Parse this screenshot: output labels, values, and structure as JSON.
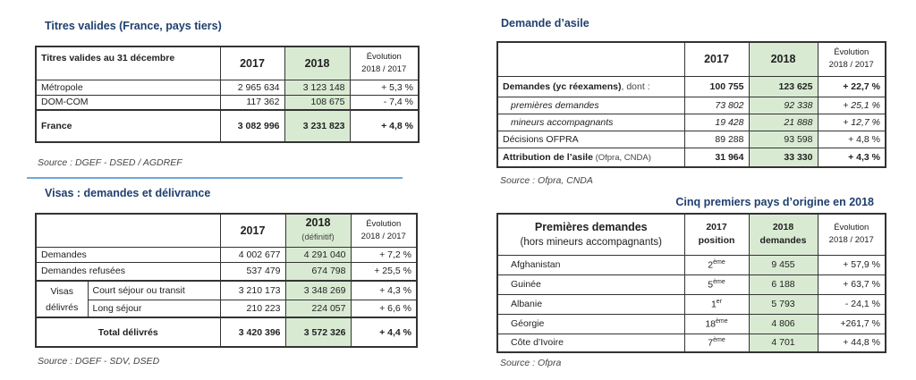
{
  "titres": {
    "title": "Titres valides (France, pays tiers)",
    "header": {
      "label": "Titres valides au 31 décembre",
      "y2017": "2017",
      "y2018": "2018",
      "evo1": "Évolution",
      "evo2": "2018 / 2017"
    },
    "rows": [
      {
        "label": "Métropole",
        "v2017": "2 965 634",
        "v2018": "3 123 148",
        "evo": "+ 5,3 %"
      },
      {
        "label": "DOM-COM",
        "v2017": "117 362",
        "v2018": "108 675",
        "evo": "- 7,4 %"
      },
      {
        "label": "France",
        "v2017": "3 082 996",
        "v2018": "3 231 823",
        "evo": "+ 4,8 %"
      }
    ],
    "source": "Source : DGEF - DSED / AGDREF"
  },
  "visas": {
    "title": "Visas : demandes et délivrance",
    "header": {
      "y2017": "2017",
      "y2018": "2018",
      "y2018_note": "(définitif)",
      "evo1": "Évolution",
      "evo2": "2018 / 2017"
    },
    "rows": [
      {
        "label": "Demandes",
        "v2017": "4 002 677",
        "v2018": "4 291 040",
        "evo": "+ 7,2 %"
      },
      {
        "label": "Demandes refusées",
        "v2017": "537 479",
        "v2018": "674 798",
        "evo": "+ 25,5 %"
      },
      {
        "label": "Court séjour ou transit",
        "v2017": "3 210 173",
        "v2018": "3  348 269",
        "evo": "+ 4,3 %"
      },
      {
        "label": "Long séjour",
        "v2017": "210 223",
        "v2018": "224 057",
        "evo": "+ 6,6 %"
      },
      {
        "label": "Total délivrés",
        "v2017": "3 420 396",
        "v2018": "3 572 326",
        "evo": "+ 4,4 %"
      }
    ],
    "group_label1": "Visas",
    "group_label2": "délivrés",
    "source": "Source : DGEF - SDV, DSED"
  },
  "asile": {
    "title": "Demande d’asile",
    "header": {
      "y2017": "2017",
      "y2018": "2018",
      "evo1": "Évolution",
      "evo2": "2018 / 2017"
    },
    "rows": [
      {
        "label": "Demandes (yc réexamens)",
        "suffix": ", dont :",
        "v2017": "100 755",
        "v2018": "123 625",
        "evo": "+ 22,7 %"
      },
      {
        "label": "premières demandes",
        "v2017": "73 802",
        "v2018": "92 338",
        "evo": "+ 25,1 %"
      },
      {
        "label": "mineurs accompagnants",
        "v2017": "19 428",
        "v2018": "21 888",
        "evo": "+ 12,7 %"
      },
      {
        "label": "Décisions OFPRA",
        "v2017": "89 288",
        "v2018": "93 598",
        "evo": "+ 4,8 %"
      },
      {
        "label": "Attribution de l’asile",
        "suffix": " (Ofpra, CNDA)",
        "v2017": "31 964",
        "v2018": "33 330",
        "evo": "+ 4,3 %"
      }
    ],
    "source": "Source : Ofpra, CNDA"
  },
  "pays": {
    "title": "Cinq premiers pays d’origine en 2018",
    "header": {
      "label1": "Premières demandes",
      "label2": "(hors mineurs accompagnants)",
      "c2a": "2017",
      "c2b": "position",
      "c3a": "2018",
      "c3b": "demandes",
      "evo1": "Évolution",
      "evo2": "2018 / 2017"
    },
    "rows": [
      {
        "label": "Afghanistan",
        "pos": "2",
        "pos_sup": "ème",
        "v2018": "9 455",
        "evo": "+ 57,9 %"
      },
      {
        "label": "Guinée",
        "pos": "5",
        "pos_sup": "ème",
        "v2018": "6 188",
        "evo": "+ 63,7 %"
      },
      {
        "label": "Albanie",
        "pos": "1",
        "pos_sup": "er",
        "v2018": "5 793",
        "evo": "- 24,1 %"
      },
      {
        "label": "Géorgie",
        "pos": "18",
        "pos_sup": "ème",
        "v2018": "4 806",
        "evo": "+261,7 %"
      },
      {
        "label": "Côte d’Ivoire",
        "pos": "7",
        "pos_sup": "ème",
        "v2018": "4 701",
        "evo": "+ 44,8 %"
      }
    ],
    "source": "Source : Ofpra"
  }
}
